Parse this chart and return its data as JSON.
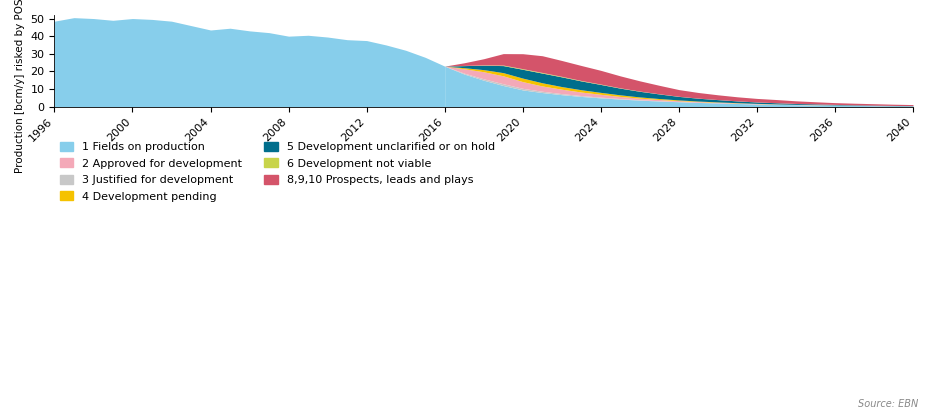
{
  "title": "",
  "ylabel": "Production [bcm/y] risked by POS and POM",
  "source": "Source: EBN",
  "ylim": [
    0,
    52
  ],
  "yticks": [
    0,
    10,
    20,
    30,
    40,
    50
  ],
  "background_color": "#ffffff",
  "colors": {
    "fields_on_production": "#87CEEB",
    "approved_for_development": "#F4A9B8",
    "justified_for_development": "#C8C8C8",
    "development_pending": "#F5C200",
    "development_unclarified": "#006E8C",
    "development_not_viable": "#C8D44A",
    "prospects_leads_plays": "#D4546A"
  },
  "legend_labels_col1": [
    "1 Fields on production",
    "3 Justified for development",
    "5 Development unclarified or on hold",
    "8,9,10 Prospects, leads and plays"
  ],
  "legend_labels_col2": [
    "2 Approved for development",
    "4 Development pending",
    "6 Development not viable"
  ],
  "legend_colors_col1": [
    "#87CEEB",
    "#C8C8C8",
    "#006E8C",
    "#D4546A"
  ],
  "legend_colors_col2": [
    "#F4A9B8",
    "#F5C200",
    "#C8D44A"
  ],
  "years_historical": [
    1996,
    1997,
    1998,
    1999,
    2000,
    2001,
    2002,
    2003,
    2004,
    2005,
    2006,
    2007,
    2008,
    2009,
    2010,
    2011,
    2012,
    2013,
    2014,
    2015,
    2016
  ],
  "fields_on_production_hist": [
    48.5,
    50.5,
    50.0,
    49.0,
    50.0,
    49.5,
    48.5,
    46.0,
    43.5,
    44.5,
    43.0,
    42.0,
    40.0,
    40.5,
    39.5,
    38.0,
    37.5,
    35.0,
    32.0,
    28.0,
    23.0
  ],
  "years_forecast": [
    2016,
    2017,
    2018,
    2019,
    2020,
    2021,
    2022,
    2023,
    2024,
    2025,
    2026,
    2027,
    2028,
    2029,
    2030,
    2031,
    2032,
    2033,
    2034,
    2035,
    2036,
    2037,
    2038,
    2039,
    2040
  ],
  "fields_on_production_fore": [
    23.0,
    18.5,
    15.0,
    12.0,
    9.5,
    8.0,
    6.8,
    5.8,
    5.0,
    4.3,
    3.7,
    3.2,
    2.8,
    2.4,
    2.1,
    1.8,
    1.5,
    1.3,
    1.1,
    1.0,
    0.85,
    0.7,
    0.6,
    0.5,
    0.45
  ],
  "approved_fore": [
    0.0,
    2.5,
    4.0,
    4.5,
    3.8,
    3.0,
    2.5,
    2.0,
    1.6,
    1.2,
    0.9,
    0.7,
    0.5,
    0.4,
    0.3,
    0.25,
    0.2,
    0.15,
    0.12,
    0.1,
    0.08,
    0.06,
    0.05,
    0.04,
    0.03
  ],
  "justified_fore": [
    0.0,
    0.5,
    0.8,
    1.0,
    0.9,
    0.75,
    0.6,
    0.5,
    0.4,
    0.3,
    0.22,
    0.16,
    0.12,
    0.09,
    0.07,
    0.05,
    0.04,
    0.03,
    0.02,
    0.02,
    0.01,
    0.01,
    0.01,
    0.0,
    0.0
  ],
  "pending_fore": [
    0.0,
    0.6,
    1.2,
    1.8,
    2.0,
    1.8,
    1.5,
    1.3,
    1.1,
    0.9,
    0.7,
    0.55,
    0.4,
    0.3,
    0.22,
    0.16,
    0.12,
    0.09,
    0.07,
    0.05,
    0.04,
    0.03,
    0.02,
    0.01,
    0.01
  ],
  "unclarified_fore": [
    0.0,
    1.2,
    2.5,
    4.0,
    5.0,
    5.5,
    5.5,
    5.0,
    4.5,
    3.8,
    3.2,
    2.6,
    2.0,
    1.6,
    1.3,
    1.0,
    0.8,
    0.65,
    0.5,
    0.4,
    0.3,
    0.25,
    0.2,
    0.15,
    0.1
  ],
  "not_viable_fore": [
    0.0,
    0.1,
    0.2,
    0.3,
    0.35,
    0.35,
    0.3,
    0.25,
    0.2,
    0.16,
    0.12,
    0.09,
    0.07,
    0.05,
    0.04,
    0.03,
    0.02,
    0.02,
    0.01,
    0.01,
    0.01,
    0.01,
    0.0,
    0.0,
    0.0
  ],
  "prospects_fore": [
    0.0,
    1.5,
    3.5,
    6.5,
    8.5,
    9.5,
    9.0,
    8.5,
    7.8,
    6.8,
    5.8,
    4.8,
    3.8,
    3.2,
    2.7,
    2.3,
    2.0,
    1.8,
    1.5,
    1.2,
    1.0,
    0.9,
    0.8,
    0.7,
    0.6
  ]
}
